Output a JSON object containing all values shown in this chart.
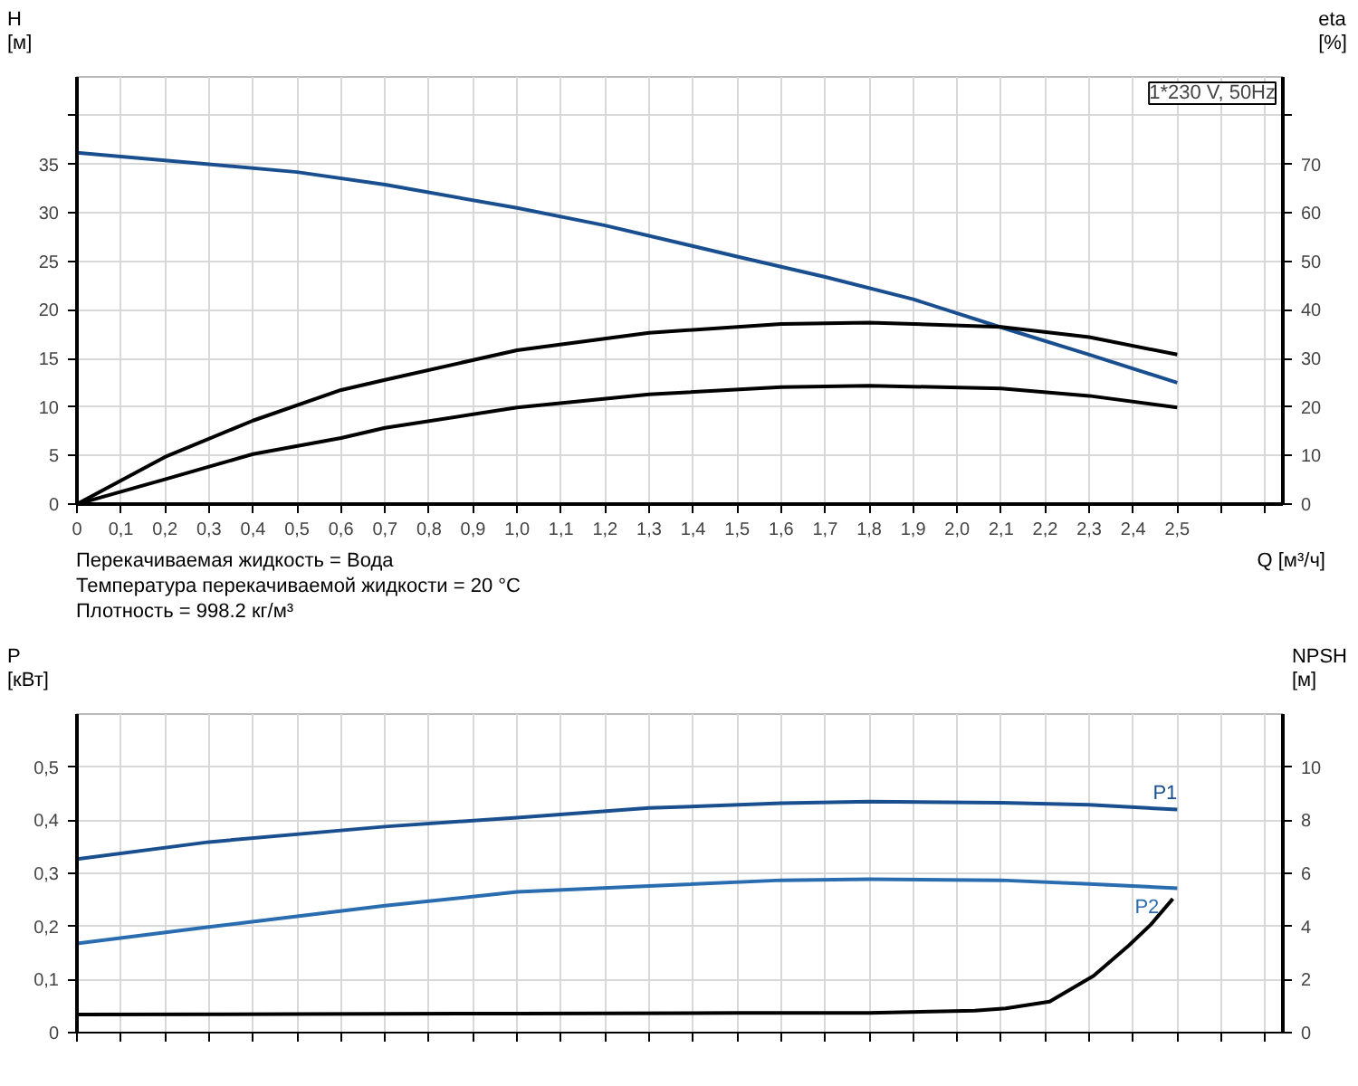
{
  "chart_data": [
    {
      "type": "line",
      "title": "1*230 V, 50Hz",
      "ylabel": "H\n[м]",
      "y2label": "eta\n[%]",
      "xlabel": "Q [м³/ч]",
      "annotations": [
        "Перекачиваемая жидкость = Вода",
        "Температура перекачиваемой жидкости = 20 °C",
        "Плотность = 998.2 кг/м³"
      ],
      "xlim": [
        0,
        2.74
      ],
      "ylim": [
        0,
        44
      ],
      "y2lim": [
        0,
        88
      ],
      "xticks": [
        0,
        {
          "value": 0.1,
          "label": "0,1"
        },
        {
          "value": 0.2,
          "label": "0,2"
        },
        {
          "value": 0.3,
          "label": "0,3"
        },
        {
          "value": 0.4,
          "label": "0,4"
        },
        {
          "value": 0.5,
          "label": "0,5"
        },
        {
          "value": 0.6,
          "label": "0,6"
        },
        {
          "value": 0.7,
          "label": "0,7"
        },
        {
          "value": 0.8,
          "label": "0,8"
        },
        {
          "value": 0.9,
          "label": "0,9"
        },
        {
          "value": 1,
          "label": "1,0"
        },
        {
          "value": 1.1,
          "label": "1,1"
        },
        {
          "value": 1.2,
          "label": "1,2"
        },
        {
          "value": 1.3,
          "label": "1,3"
        },
        {
          "value": 1.4,
          "label": "1,4"
        },
        {
          "value": 1.5,
          "label": "1,5"
        },
        {
          "value": 1.6,
          "label": "1,6"
        },
        {
          "value": 1.7,
          "label": "1,7"
        },
        {
          "value": 1.8,
          "label": "1,8"
        },
        {
          "value": 1.9,
          "label": "1,9"
        },
        {
          "value": 2,
          "label": "2,0"
        },
        {
          "value": 2.1,
          "label": "2,1"
        },
        {
          "value": 2.2,
          "label": "2,2"
        },
        {
          "value": 2.3,
          "label": "2,3"
        },
        {
          "value": 2.4,
          "label": "2,4"
        },
        {
          "value": 2.5,
          "label": "2,5"
        },
        {
          "value": 2.6,
          "label": null
        },
        {
          "value": 2.7,
          "label": null
        }
      ],
      "yticks": [
        0,
        5,
        10,
        15,
        20,
        25,
        30,
        35,
        {
          "value": 40,
          "label": null
        }
      ],
      "y2ticks": [
        0,
        10,
        20,
        30,
        40,
        50,
        60,
        70,
        {
          "value": 80,
          "label": null
        }
      ],
      "grid": true,
      "marker": "none",
      "line_style": "solid",
      "series": [
        {
          "color": "#1a4f8f",
          "x": [
            0,
            0.3,
            0.5,
            0.7,
            1.0,
            1.2,
            1.5,
            1.7,
            1.9,
            2.1,
            2.3,
            2.5
          ],
          "values": [
            36.2,
            35.0,
            34.2,
            32.9,
            30.5,
            28.7,
            25.5,
            23.4,
            21.1,
            18.2,
            15.4,
            12.5
          ]
        },
        {
          "color": "#000000",
          "axis": "y2",
          "x": [
            0,
            0.2,
            0.4,
            0.6,
            0.7,
            1.0,
            1.3,
            1.6,
            1.8,
            2.1,
            2.3,
            2.5
          ],
          "values": [
            0,
            9.7,
            17.2,
            23.5,
            25.6,
            31.7,
            35.3,
            37.1,
            37.4,
            36.5,
            34.4,
            30.8
          ]
        },
        {
          "color": "#000000",
          "axis": "y2",
          "x": [
            0,
            0.2,
            0.4,
            0.6,
            0.7,
            1.0,
            1.3,
            1.6,
            1.8,
            2.1,
            2.3,
            2.5
          ],
          "values": [
            0,
            5.1,
            10.3,
            13.6,
            15.7,
            19.9,
            22.6,
            24.1,
            24.4,
            23.8,
            22.3,
            19.9
          ]
        }
      ]
    },
    {
      "type": "line",
      "ylabel": "P\n[кВт]",
      "y2label": "NPSH\n[м]",
      "xlim": [
        0,
        2.74
      ],
      "ylim": [
        0,
        0.6
      ],
      "y2lim": [
        0,
        12
      ],
      "xticks": [
        0,
        0.1,
        0.2,
        0.3,
        0.4,
        0.5,
        0.6,
        0.7,
        0.8,
        0.9,
        1,
        1.1,
        1.2,
        1.3,
        1.4,
        1.5,
        1.6,
        1.7,
        1.8,
        1.9,
        2,
        2.1,
        2.2,
        2.3,
        2.4,
        2.5,
        2.6,
        2.7
      ],
      "yticks": [
        0,
        {
          "value": 0.1,
          "label": "0,1"
        },
        {
          "value": 0.2,
          "label": "0,2"
        },
        {
          "value": 0.3,
          "label": "0,3"
        },
        {
          "value": 0.4,
          "label": "0,4"
        },
        {
          "value": 0.5,
          "label": "0,5"
        }
      ],
      "y2ticks": [
        0,
        2,
        4,
        6,
        8,
        10
      ],
      "tick_labels": "y",
      "grid": true,
      "marker": "none",
      "line_style": "solid",
      "series": [
        {
          "name": "P1",
          "color": "#1a4f8f",
          "x": [
            0,
            0.3,
            0.7,
            1.0,
            1.3,
            1.6,
            1.8,
            2.1,
            2.3,
            2.5
          ],
          "values": [
            0.327,
            0.359,
            0.388,
            0.405,
            0.423,
            0.432,
            0.435,
            0.433,
            0.429,
            0.42
          ]
        },
        {
          "name": "P2",
          "color": "#2a6cb0",
          "x": [
            0,
            0.3,
            0.7,
            1.0,
            1.3,
            1.6,
            1.8,
            2.1,
            2.3,
            2.5
          ],
          "values": [
            0.168,
            0.199,
            0.239,
            0.265,
            0.276,
            0.287,
            0.289,
            0.287,
            0.28,
            0.272
          ]
        },
        {
          "color": "#000000",
          "axis": "y2",
          "x": [
            0,
            0.5,
            1.0,
            1.5,
            1.8,
            2.04,
            2.11,
            2.21,
            2.31,
            2.39,
            2.44,
            2.49
          ],
          "values": [
            0.68,
            0.7,
            0.72,
            0.74,
            0.74,
            0.83,
            0.91,
            1.17,
            2.14,
            3.28,
            4.07,
            5.04
          ]
        }
      ]
    }
  ]
}
